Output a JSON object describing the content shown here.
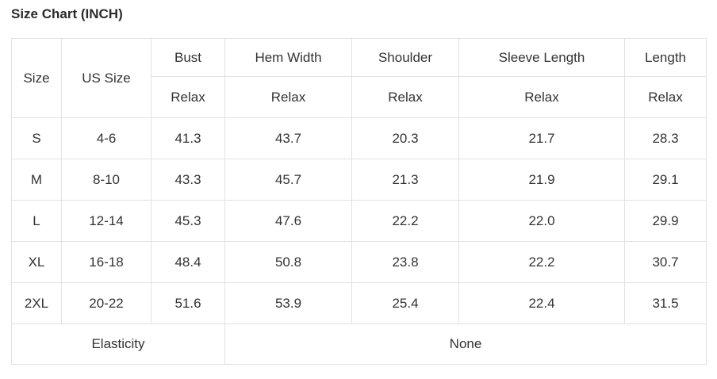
{
  "page": {
    "title": "Size Chart (INCH)"
  },
  "table": {
    "corner_label": "Size",
    "us_size_label": "US Size",
    "measure_headers": [
      "Bust",
      "Hem Width",
      "Shoulder",
      "Sleeve Length",
      "Length"
    ],
    "fit_values": [
      "Relax",
      "Relax",
      "Relax",
      "Relax",
      "Relax"
    ],
    "rows": [
      {
        "size": "S",
        "us_size": "4-6",
        "values": [
          "41.3",
          "43.7",
          "20.3",
          "21.7",
          "28.3"
        ]
      },
      {
        "size": "M",
        "us_size": "8-10",
        "values": [
          "43.3",
          "45.7",
          "21.3",
          "21.9",
          "29.1"
        ]
      },
      {
        "size": "L",
        "us_size": "12-14",
        "values": [
          "45.3",
          "47.6",
          "22.2",
          "22.0",
          "29.9"
        ]
      },
      {
        "size": "XL",
        "us_size": "16-18",
        "values": [
          "48.4",
          "50.8",
          "23.8",
          "22.2",
          "30.7"
        ]
      },
      {
        "size": "2XL",
        "us_size": "20-22",
        "values": [
          "51.6",
          "53.9",
          "25.4",
          "22.4",
          "31.5"
        ]
      }
    ],
    "footer": {
      "label": "Elasticity",
      "value": "None"
    }
  },
  "colors": {
    "header_bg": "#f5f5f5",
    "us_size_bg": "#454545",
    "us_size_text": "#ffffff",
    "border": "#e2e2e2",
    "text": "#333333"
  }
}
